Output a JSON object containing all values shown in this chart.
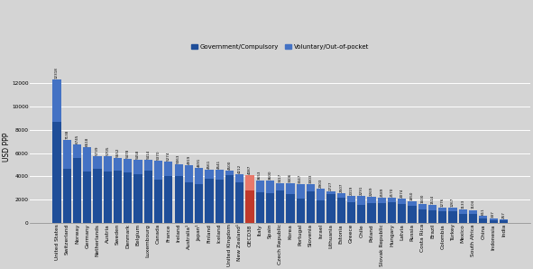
{
  "countries": [
    "United States",
    "Switzerland",
    "Norway",
    "Germany",
    "Netherlands",
    "Austria",
    "Sweden",
    "Denmark",
    "Belgium",
    "Luxembourg",
    "Canada",
    "France",
    "Ireland",
    "Australia¹",
    "Japan¹",
    "Finland",
    "Iceland",
    "United Kingdom",
    "New Zealand¹",
    "OECD38",
    "Italy",
    "Spain",
    "Czech Republic",
    "Korea",
    "Portugal",
    "Slovenia",
    "Israel",
    "Lithuania",
    "Estonia",
    "Greece",
    "Chile",
    "Poland",
    "Slovak Republic",
    "Hungary",
    "Latvia",
    "Russia",
    "Costa Rica",
    "Brazil",
    "Colombia",
    "Turkey",
    "Mexico",
    "South Africa",
    "China",
    "Indonesia",
    "India"
  ],
  "totals": [
    12318,
    7138,
    6745,
    6518,
    5739,
    5705,
    5552,
    5478,
    5458,
    5414,
    5370,
    5274,
    5063,
    4919,
    4691,
    4561,
    4541,
    4500,
    4212,
    4087,
    3653,
    3600,
    3417,
    3406,
    3347,
    3303,
    2903,
    2727,
    2507,
    2319,
    2291,
    2269,
    2189,
    2170,
    2074,
    1850,
    1600,
    1514,
    1276,
    1267,
    1133,
    1104,
    611,
    337,
    257
  ],
  "gov_compulsory": [
    8700,
    4650,
    5600,
    4450,
    4650,
    4450,
    4500,
    4300,
    4200,
    4500,
    3750,
    4000,
    4050,
    3500,
    3350,
    3800,
    3700,
    4100,
    3450,
    2750,
    2650,
    2550,
    2750,
    2500,
    2050,
    2700,
    1950,
    2500,
    2150,
    1750,
    1550,
    1700,
    1700,
    1800,
    1600,
    1450,
    1150,
    1100,
    950,
    950,
    780,
    720,
    400,
    230,
    175
  ],
  "bar_color_gov": "#1f4e99",
  "bar_color_vol": "#4472c4",
  "bar_color_oecd_gov": "#c0392b",
  "bar_color_oecd_vol": "#e8786a",
  "background_color": "#d4d4d4",
  "plot_bg_color": "#d4d4d4",
  "ylabel": "USD PPP",
  "ylim": [
    0,
    13000
  ],
  "yticks": [
    0,
    2000,
    4000,
    6000,
    8000,
    10000,
    12000
  ],
  "legend_gov": "Government/Compulsory",
  "legend_vol": "Voluntary/Out-of-pocket",
  "label_fontsize": 3.0,
  "tick_fontsize": 4.2,
  "ylabel_fontsize": 5.5
}
